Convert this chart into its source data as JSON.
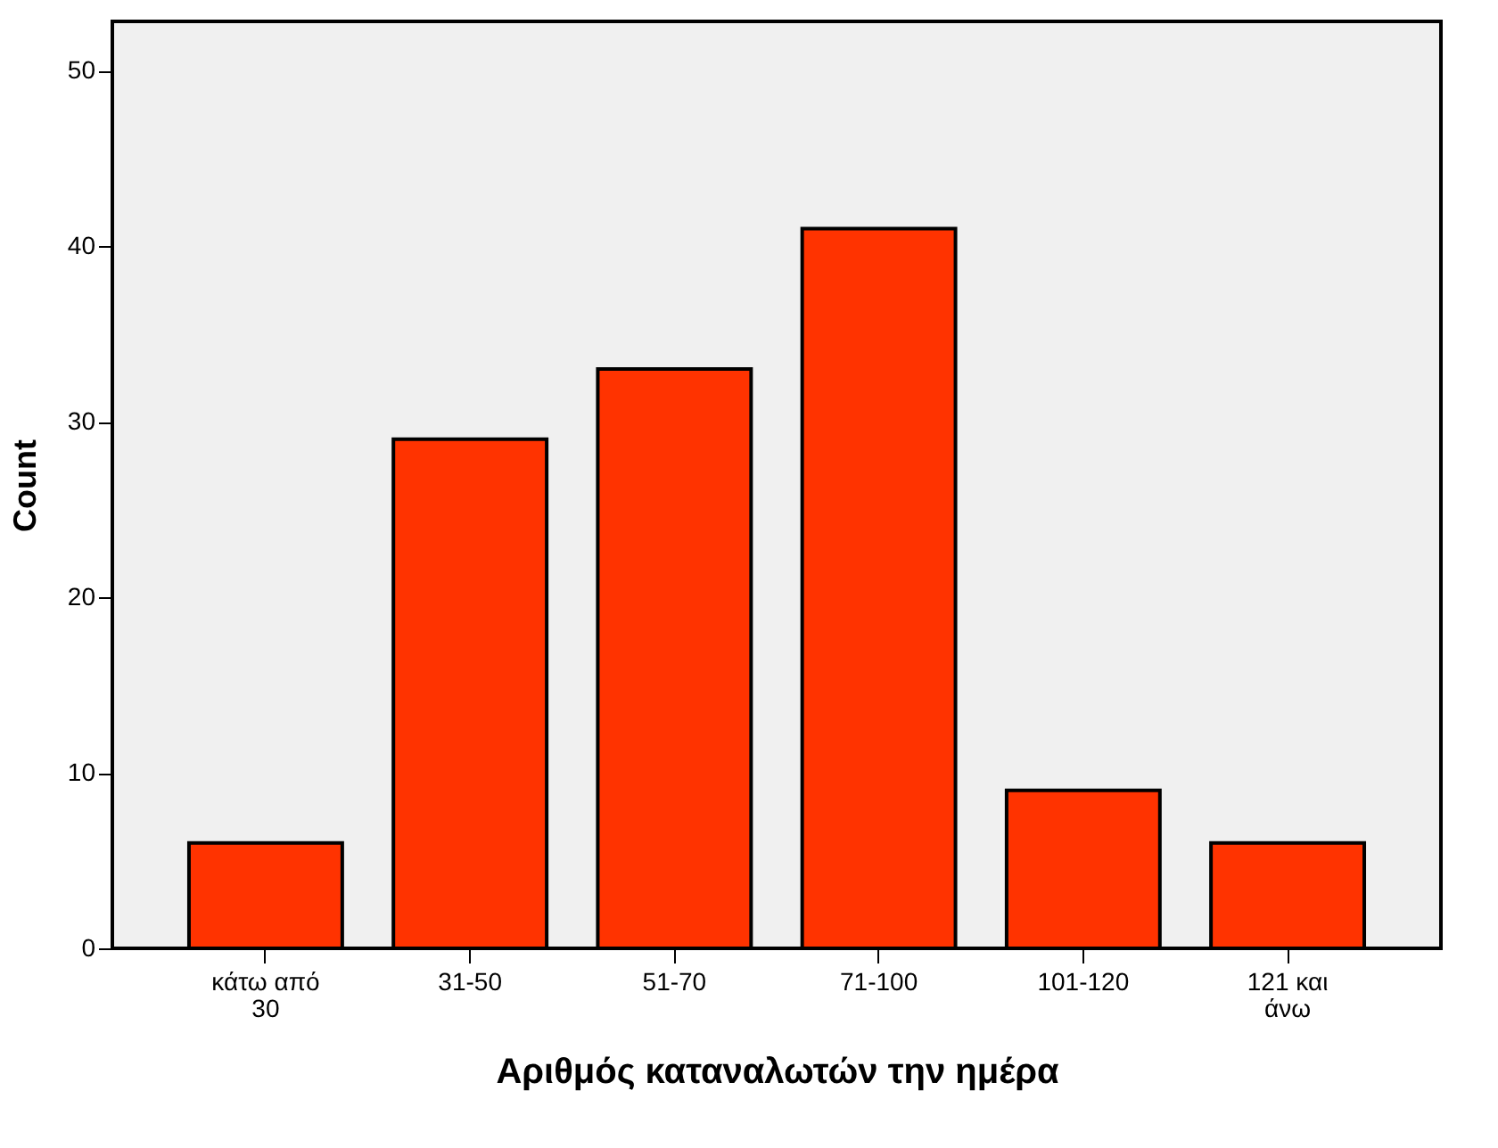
{
  "chart_data": {
    "type": "bar",
    "xlabel": "Αριθμός καταναλωτών την ημέρα",
    "ylabel": "Count",
    "categories": [
      "κάτω από 30",
      "31-50",
      "51-70",
      "71-100",
      "101-120",
      "121 και άνω"
    ],
    "values": [
      6,
      29,
      33,
      41,
      9,
      6
    ],
    "color": "#ff3300",
    "ylim": [
      0,
      52.8
    ],
    "yticks": [
      0,
      10,
      20,
      30,
      40,
      50
    ],
    "grid": false
  }
}
